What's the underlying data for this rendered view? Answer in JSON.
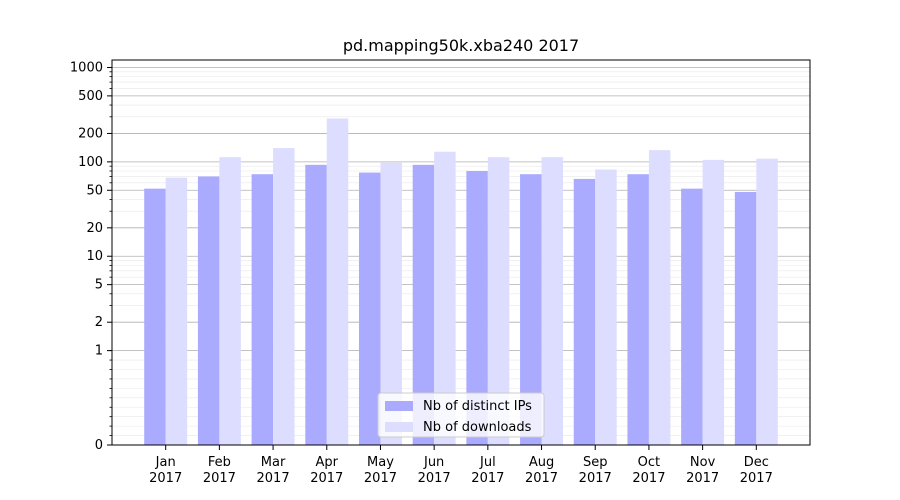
{
  "chart_data": {
    "type": "bar",
    "title": "pd.mapping50k.xba240 2017",
    "xlabel": "",
    "ylabel": "",
    "y_scale": "symlog",
    "ylim": [
      0,
      1200
    ],
    "yticks": [
      0,
      1,
      2,
      5,
      10,
      20,
      50,
      100,
      200,
      500,
      1000
    ],
    "ytick_labels": [
      "0",
      "1",
      "2",
      "5",
      "10",
      "20",
      "50",
      "100",
      "200",
      "500",
      "1000"
    ],
    "categories": [
      "Jan\n2017",
      "Feb\n2017",
      "Mar\n2017",
      "Apr\n2017",
      "May\n2017",
      "Jun\n2017",
      "Jul\n2017",
      "Aug\n2017",
      "Sep\n2017",
      "Oct\n2017",
      "Nov\n2017",
      "Dec\n2017"
    ],
    "series": [
      {
        "name": "Nb of distinct IPs",
        "color": "#aaaaff",
        "values": [
          52,
          70,
          74,
          93,
          77,
          93,
          80,
          74,
          66,
          74,
          52,
          48
        ]
      },
      {
        "name": "Nb of downloads",
        "color": "#ddddff",
        "values": [
          68,
          112,
          140,
          288,
          98,
          128,
          112,
          112,
          83,
          133,
          105,
          108
        ]
      }
    ],
    "grid": true,
    "legend_position": "lower center"
  }
}
